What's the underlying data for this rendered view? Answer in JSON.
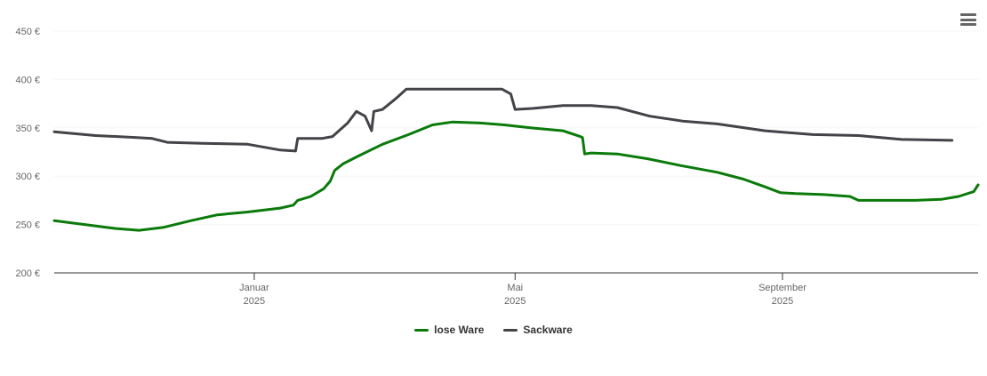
{
  "chart_data": {
    "type": "line",
    "title": "",
    "xlabel": "",
    "ylabel": "",
    "x_range": [
      "2024-10-01",
      "2025-11-30"
    ],
    "ylim": [
      200,
      450
    ],
    "y_ticks": [
      {
        "value": 200,
        "label": "200 €"
      },
      {
        "value": 250,
        "label": "250 €"
      },
      {
        "value": 300,
        "label": "300 €"
      },
      {
        "value": 350,
        "label": "350 €"
      },
      {
        "value": 400,
        "label": "400 €"
      },
      {
        "value": 450,
        "label": "450 €"
      }
    ],
    "x_ticks": [
      {
        "date": "2025-01-01",
        "label": "Januar",
        "sublabel": "2025"
      },
      {
        "date": "2025-05-01",
        "label": "Mai",
        "sublabel": "2025"
      },
      {
        "date": "2025-09-01",
        "label": "September",
        "sublabel": "2025"
      }
    ],
    "grid": true,
    "legend_position": "bottom-center",
    "series": [
      {
        "name": "lose Ware",
        "color": "#0a7a0a",
        "points": [
          [
            "2024-10-01",
            254
          ],
          [
            "2024-10-15",
            250
          ],
          [
            "2024-10-29",
            246
          ],
          [
            "2024-11-09",
            244
          ],
          [
            "2024-11-20",
            247
          ],
          [
            "2024-12-03",
            254
          ],
          [
            "2024-12-15",
            260
          ],
          [
            "2024-12-29",
            263
          ],
          [
            "2025-01-13",
            267
          ],
          [
            "2025-01-19",
            270
          ],
          [
            "2025-01-21",
            275
          ],
          [
            "2025-01-27",
            279
          ],
          [
            "2025-02-02",
            287
          ],
          [
            "2025-02-05",
            295
          ],
          [
            "2025-02-07",
            306
          ],
          [
            "2025-02-11",
            313
          ],
          [
            "2025-02-18",
            321
          ],
          [
            "2025-03-01",
            333
          ],
          [
            "2025-03-13",
            343
          ],
          [
            "2025-03-24",
            353
          ],
          [
            "2025-04-02",
            356
          ],
          [
            "2025-04-15",
            355
          ],
          [
            "2025-04-26",
            353
          ],
          [
            "2025-05-08",
            350
          ],
          [
            "2025-05-23",
            347
          ],
          [
            "2025-05-31",
            341
          ],
          [
            "2025-06-01",
            340
          ],
          [
            "2025-06-02",
            323
          ],
          [
            "2025-06-05",
            324
          ],
          [
            "2025-06-17",
            323
          ],
          [
            "2025-07-01",
            318
          ],
          [
            "2025-07-16",
            311
          ],
          [
            "2025-08-02",
            304
          ],
          [
            "2025-08-14",
            297
          ],
          [
            "2025-08-24",
            289
          ],
          [
            "2025-08-31",
            283
          ],
          [
            "2025-09-07",
            282
          ],
          [
            "2025-09-20",
            281
          ],
          [
            "2025-10-02",
            279
          ],
          [
            "2025-10-06",
            275
          ],
          [
            "2025-10-16",
            275
          ],
          [
            "2025-11-01",
            275
          ],
          [
            "2025-11-13",
            276
          ],
          [
            "2025-11-21",
            279
          ],
          [
            "2025-11-28",
            284
          ],
          [
            "2025-11-30",
            291
          ]
        ]
      },
      {
        "name": "Sackware",
        "color": "#434348",
        "points": [
          [
            "2024-10-01",
            346
          ],
          [
            "2024-10-20",
            342
          ],
          [
            "2024-11-08",
            340
          ],
          [
            "2024-11-15",
            339
          ],
          [
            "2024-11-22",
            335
          ],
          [
            "2024-12-08",
            334
          ],
          [
            "2024-12-29",
            333
          ],
          [
            "2025-01-13",
            327
          ],
          [
            "2025-01-20",
            326
          ],
          [
            "2025-01-21",
            339
          ],
          [
            "2025-02-01",
            339
          ],
          [
            "2025-02-06",
            341
          ],
          [
            "2025-02-13",
            355
          ],
          [
            "2025-02-17",
            367
          ],
          [
            "2025-02-21",
            362
          ],
          [
            "2025-02-24",
            347
          ],
          [
            "2025-02-25",
            367
          ],
          [
            "2025-03-01",
            369
          ],
          [
            "2025-03-07",
            380
          ],
          [
            "2025-03-12",
            390
          ],
          [
            "2025-04-02",
            390
          ],
          [
            "2025-04-25",
            390
          ],
          [
            "2025-04-29",
            385
          ],
          [
            "2025-05-01",
            369
          ],
          [
            "2025-05-09",
            370
          ],
          [
            "2025-05-23",
            373
          ],
          [
            "2025-06-05",
            373
          ],
          [
            "2025-06-17",
            371
          ],
          [
            "2025-07-02",
            362
          ],
          [
            "2025-07-17",
            357
          ],
          [
            "2025-08-02",
            354
          ],
          [
            "2025-08-24",
            347
          ],
          [
            "2025-09-15",
            343
          ],
          [
            "2025-10-06",
            342
          ],
          [
            "2025-10-26",
            338
          ],
          [
            "2025-11-18",
            337
          ]
        ]
      }
    ]
  },
  "legend": [
    {
      "label": "lose Ware",
      "color": "#0a7a0a"
    },
    {
      "label": "Sackware",
      "color": "#434348"
    }
  ],
  "menu": {
    "icon": "hamburger-menu-icon"
  }
}
